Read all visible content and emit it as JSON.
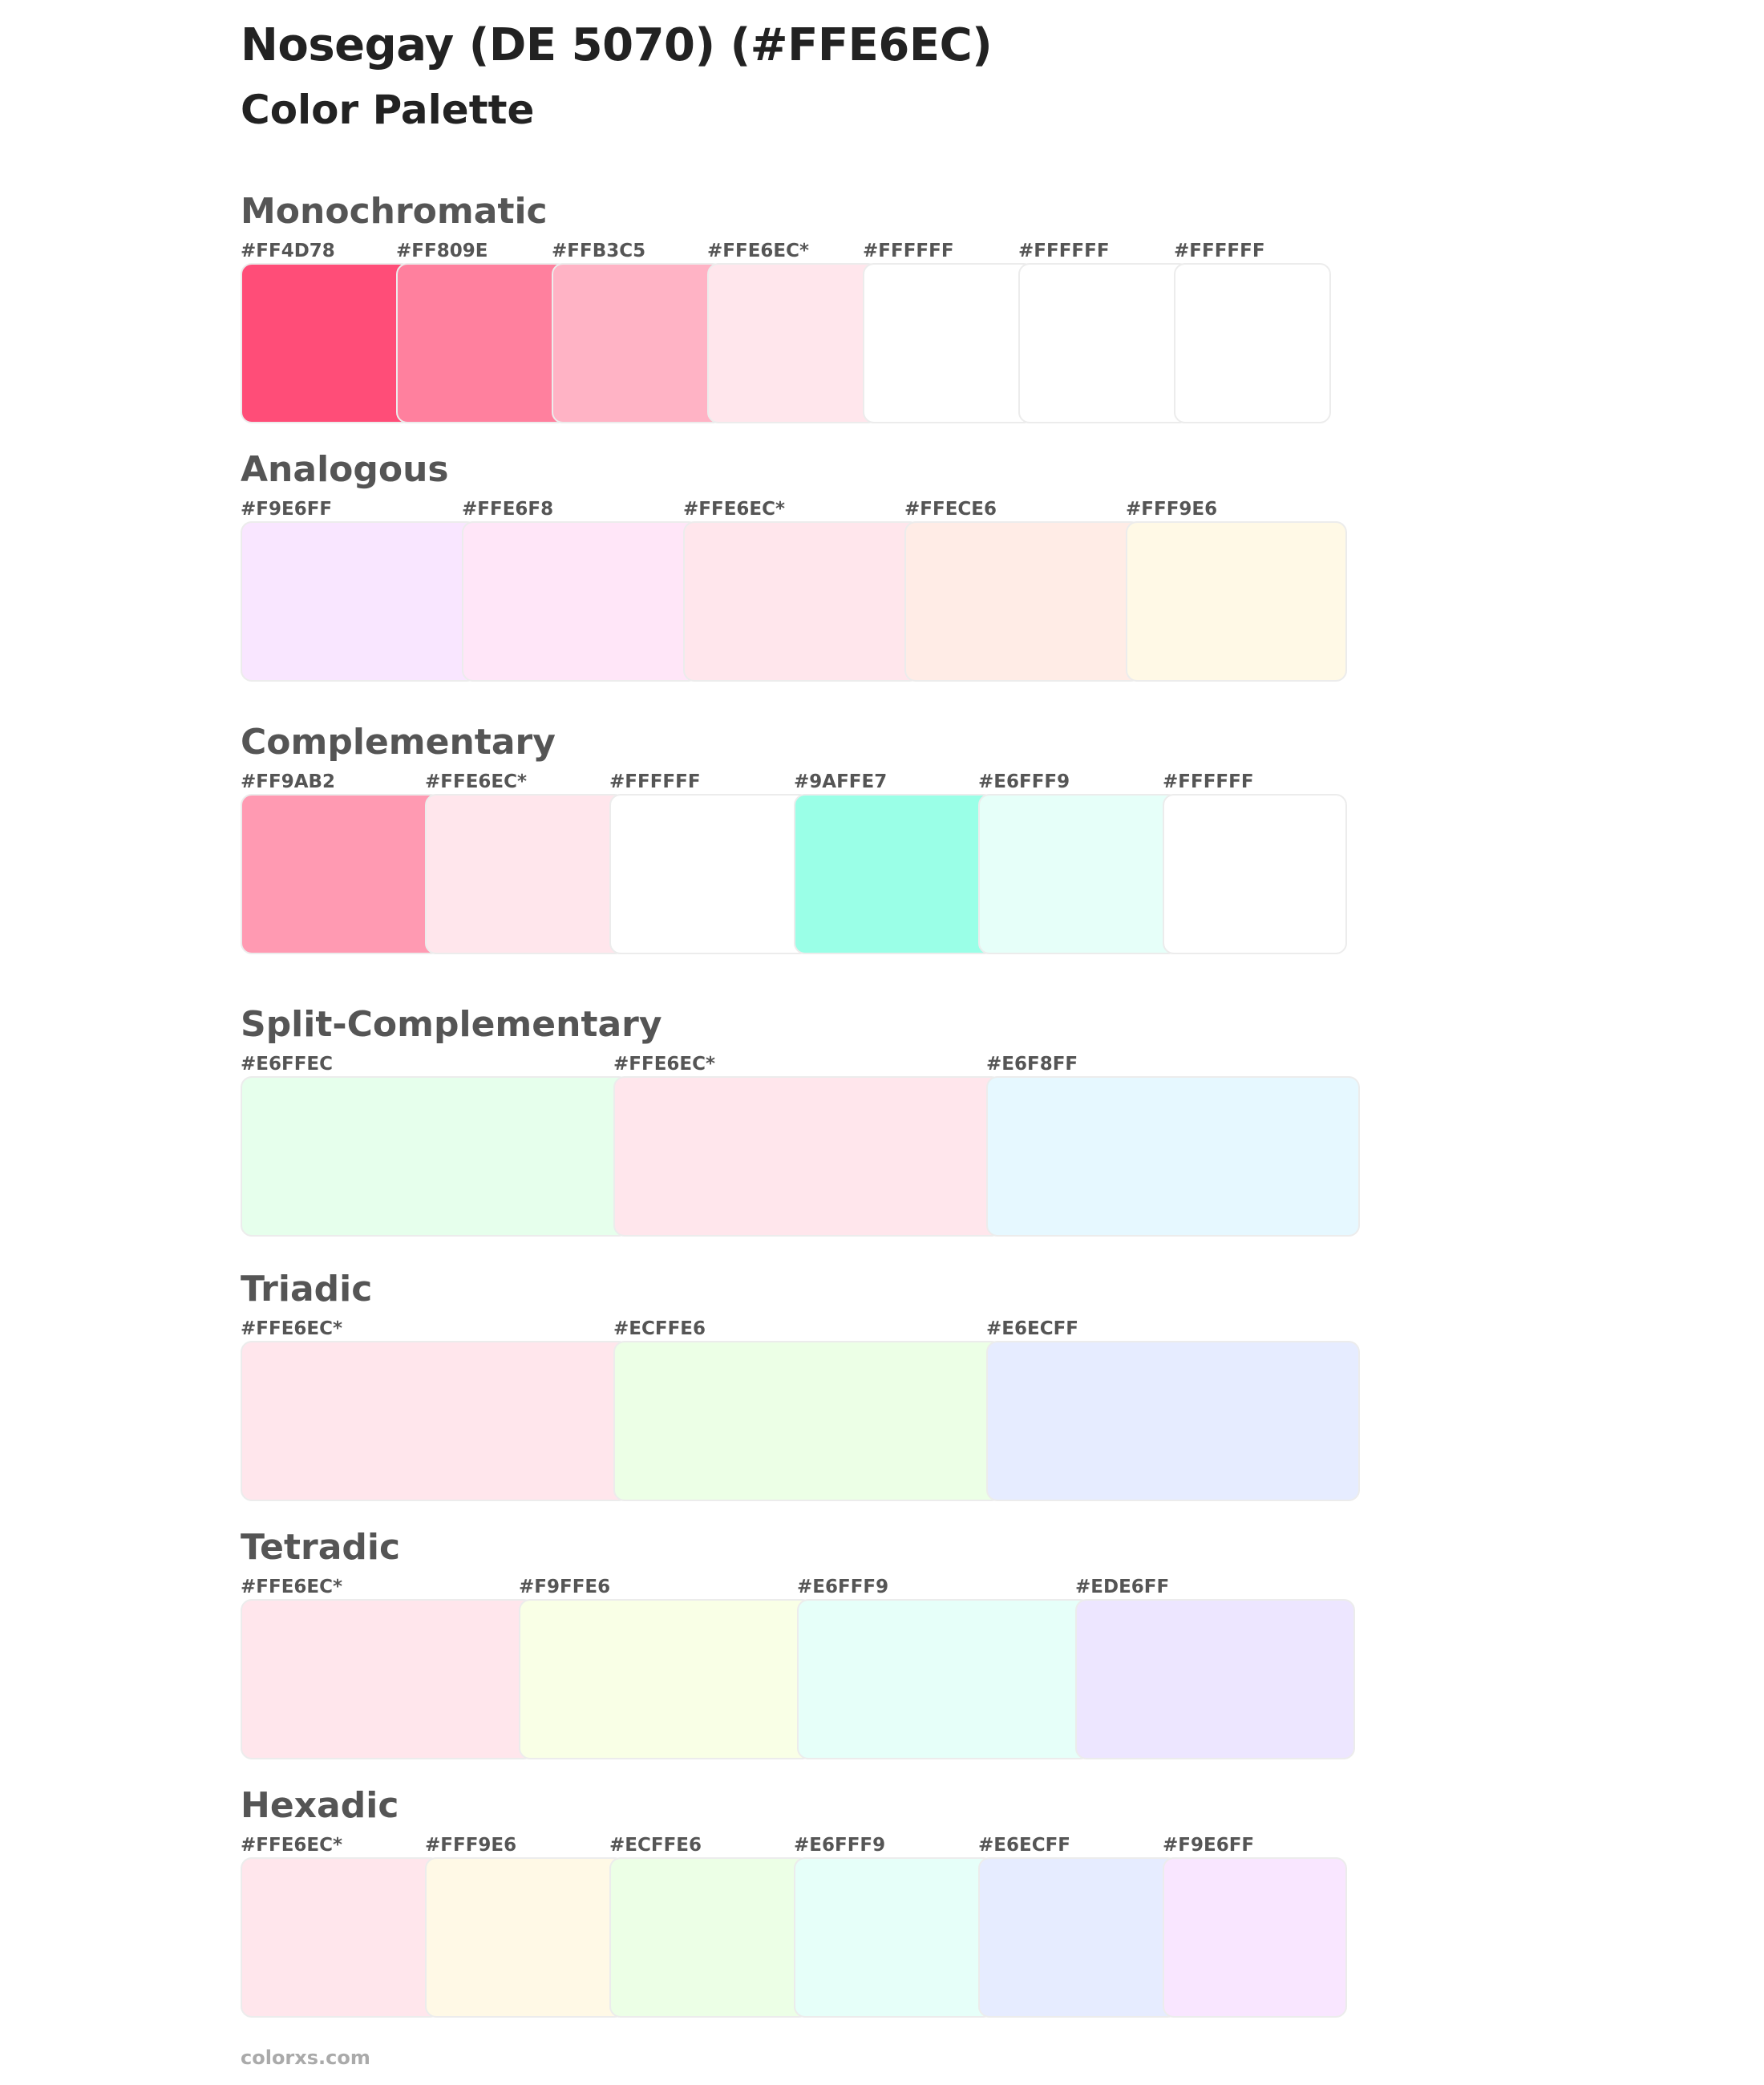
{
  "header": {
    "title": "Nosegay (DE 5070) (#FFE6EC)",
    "subtitle": "Color Palette"
  },
  "sections": [
    {
      "name": "Monochromatic",
      "swatches": [
        {
          "label": "#FF4D78",
          "color": "#FF4D78"
        },
        {
          "label": "#FF809E",
          "color": "#FF809E"
        },
        {
          "label": "#FFB3C5",
          "color": "#FFB3C5"
        },
        {
          "label": "#FFE6EC*",
          "color": "#FFE6EC"
        },
        {
          "label": "#FFFFFF",
          "color": "#FFFFFF"
        },
        {
          "label": "#FFFFFF",
          "color": "#FFFFFF"
        },
        {
          "label": "#FFFFFF",
          "color": "#FFFFFF"
        }
      ]
    },
    {
      "name": "Analogous",
      "swatches": [
        {
          "label": "#F9E6FF",
          "color": "#F9E6FF"
        },
        {
          "label": "#FFE6F8",
          "color": "#FFE6F8"
        },
        {
          "label": "#FFE6EC*",
          "color": "#FFE6EC"
        },
        {
          "label": "#FFECE6",
          "color": "#FFECE6"
        },
        {
          "label": "#FFF9E6",
          "color": "#FFF9E6"
        }
      ]
    },
    {
      "name": "Complementary",
      "swatches": [
        {
          "label": "#FF9AB2",
          "color": "#FF9AB2"
        },
        {
          "label": "#FFE6EC*",
          "color": "#FFE6EC"
        },
        {
          "label": "#FFFFFF",
          "color": "#FFFFFF"
        },
        {
          "label": "#9AFFE7",
          "color": "#9AFFE7"
        },
        {
          "label": "#E6FFF9",
          "color": "#E6FFF9"
        },
        {
          "label": "#FFFFFF",
          "color": "#FFFFFF"
        }
      ]
    },
    {
      "name": "Split-Complementary",
      "swatches": [
        {
          "label": "#E6FFEC",
          "color": "#E6FFEC"
        },
        {
          "label": "#FFE6EC*",
          "color": "#FFE6EC"
        },
        {
          "label": "#E6F8FF",
          "color": "#E6F8FF"
        }
      ]
    },
    {
      "name": "Triadic",
      "swatches": [
        {
          "label": "#FFE6EC*",
          "color": "#FFE6EC"
        },
        {
          "label": "#ECFFE6",
          "color": "#ECFFE6"
        },
        {
          "label": "#E6ECFF",
          "color": "#E6ECFF"
        }
      ]
    },
    {
      "name": "Tetradic",
      "swatches": [
        {
          "label": "#FFE6EC*",
          "color": "#FFE6EC"
        },
        {
          "label": "#F9FFE6",
          "color": "#F9FFE6"
        },
        {
          "label": "#E6FFF9",
          "color": "#E6FFF9"
        },
        {
          "label": "#EDE6FF",
          "color": "#EDE6FF"
        }
      ]
    },
    {
      "name": "Hexadic",
      "swatches": [
        {
          "label": "#FFE6EC*",
          "color": "#FFE6EC"
        },
        {
          "label": "#FFF9E6",
          "color": "#FFF9E6"
        },
        {
          "label": "#ECFFE6",
          "color": "#ECFFE6"
        },
        {
          "label": "#E6FFF9",
          "color": "#E6FFF9"
        },
        {
          "label": "#E6ECFF",
          "color": "#E6ECFF"
        },
        {
          "label": "#F9E6FF",
          "color": "#F9E6FF"
        }
      ]
    }
  ],
  "footer": {
    "text": "colorxs.com"
  }
}
